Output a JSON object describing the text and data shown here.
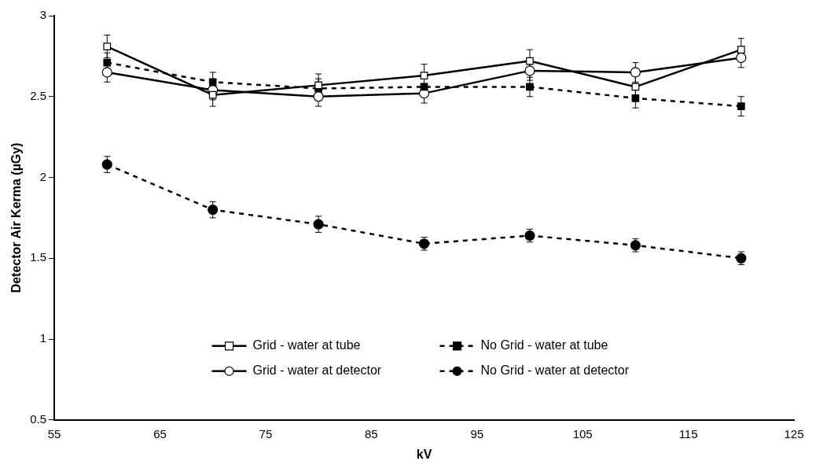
{
  "chart_data": {
    "type": "line",
    "xlabel": "kV",
    "ylabel": "Detector Air Kerma (µGy)",
    "x": [
      60,
      70,
      80,
      90,
      100,
      110,
      120
    ],
    "xlim": [
      55,
      125
    ],
    "xticks": [
      55,
      65,
      75,
      85,
      95,
      105,
      115,
      125
    ],
    "ylim": [
      0.5,
      3
    ],
    "yticks": [
      0.5,
      1,
      1.5,
      2,
      2.5,
      3
    ],
    "grid": false,
    "legend": "bottom",
    "series": [
      {
        "name": "Grid - water at tube",
        "color": "#000000",
        "marker": "square",
        "line_style": "solid",
        "values": [
          2.81,
          2.51,
          2.57,
          2.63,
          2.72,
          2.56,
          2.79
        ],
        "errors": [
          0.07,
          0.07,
          0.07,
          0.07,
          0.07,
          0.07,
          0.07
        ]
      },
      {
        "name": "No Grid - water at tube",
        "color": "#000000",
        "marker": "square",
        "line_style": "dashed",
        "values": [
          2.71,
          2.59,
          2.55,
          2.56,
          2.56,
          2.49,
          2.44
        ],
        "errors": [
          0.06,
          0.06,
          0.06,
          0.06,
          0.06,
          0.06,
          0.06
        ]
      },
      {
        "name": "Grid - water at detector",
        "color": "#000000",
        "marker": "circle",
        "line_style": "solid",
        "values": [
          2.65,
          2.54,
          2.5,
          2.52,
          2.66,
          2.65,
          2.74
        ],
        "errors": [
          0.06,
          0.06,
          0.06,
          0.06,
          0.06,
          0.06,
          0.06
        ]
      },
      {
        "name": "No Grid - water at detector",
        "color": "#000000",
        "marker": "circle",
        "line_style": "dashed",
        "values": [
          2.08,
          1.8,
          1.71,
          1.59,
          1.64,
          1.58,
          1.5
        ],
        "errors": [
          0.05,
          0.05,
          0.05,
          0.04,
          0.04,
          0.04,
          0.04
        ]
      }
    ]
  }
}
